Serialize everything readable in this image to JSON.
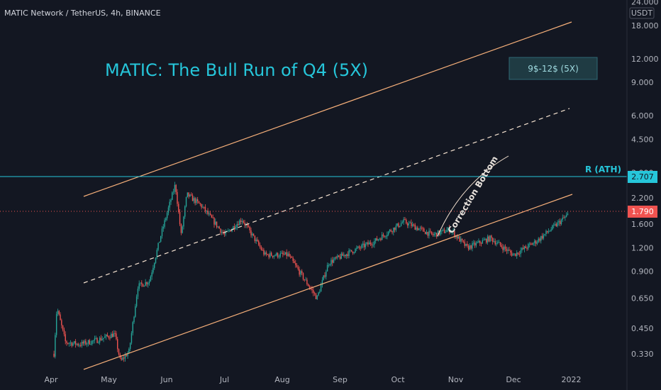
{
  "header": {
    "symbol_line": "MATIC Network / TetherUS, 4h, BINANCE"
  },
  "colors": {
    "background": "#131722",
    "candle_up": "#26a69a",
    "candle_down": "#ef5350",
    "channel": "#f7b07a",
    "resistance": "#26c6da",
    "title": "#26c6da",
    "price_tag": "#ef5350"
  },
  "chart_data": {
    "type": "candlestick",
    "title": "MATIC: The Bull Run of Q4 (5X)",
    "y_scale": "log",
    "y_unit": "USDT",
    "ylim": [
      0.28,
      24
    ],
    "y_ticks": [
      "24.000",
      "18.000",
      "12.000",
      "9.000",
      "6.000",
      "4.500",
      "3.000",
      "2.200",
      "1.600",
      "1.200",
      "0.900",
      "0.650",
      "0.450",
      "0.330"
    ],
    "x_ticks": [
      "Apr",
      "May",
      "Jun",
      "Jul",
      "Aug",
      "Sep",
      "Oct",
      "Nov",
      "Dec",
      "2022"
    ],
    "price_path": [
      {
        "month": 0.05,
        "close": 0.33
      },
      {
        "month": 0.1,
        "close": 0.58
      },
      {
        "month": 0.25,
        "close": 0.38
      },
      {
        "month": 0.5,
        "close": 0.37
      },
      {
        "month": 0.8,
        "close": 0.39
      },
      {
        "month": 1.1,
        "close": 0.42
      },
      {
        "month": 1.2,
        "close": 0.3
      },
      {
        "month": 1.35,
        "close": 0.34
      },
      {
        "month": 1.5,
        "close": 0.75
      },
      {
        "month": 1.7,
        "close": 0.8
      },
      {
        "month": 1.9,
        "close": 1.4
      },
      {
        "month": 2.0,
        "close": 1.8
      },
      {
        "month": 2.15,
        "close": 2.6
      },
      {
        "month": 2.25,
        "close": 1.4
      },
      {
        "month": 2.35,
        "close": 2.3
      },
      {
        "month": 2.6,
        "close": 2.0
      },
      {
        "month": 3.0,
        "close": 1.4
      },
      {
        "month": 3.3,
        "close": 1.7
      },
      {
        "month": 3.7,
        "close": 1.1
      },
      {
        "month": 4.1,
        "close": 1.1
      },
      {
        "month": 4.6,
        "close": 0.65
      },
      {
        "month": 4.8,
        "close": 1.0
      },
      {
        "month": 5.2,
        "close": 1.15
      },
      {
        "month": 5.6,
        "close": 1.3
      },
      {
        "month": 6.1,
        "close": 1.65
      },
      {
        "month": 6.6,
        "close": 1.4
      },
      {
        "month": 6.9,
        "close": 1.5
      },
      {
        "month": 7.2,
        "close": 1.2
      },
      {
        "month": 7.6,
        "close": 1.35
      },
      {
        "month": 8.0,
        "close": 1.1
      },
      {
        "month": 8.4,
        "close": 1.3
      },
      {
        "month": 8.7,
        "close": 1.55
      },
      {
        "month": 8.95,
        "close": 1.8
      }
    ],
    "lines": {
      "resistance_label": "R (ATH)",
      "resistance_value": "2.707",
      "last_price": "1.790"
    },
    "annotations": {
      "target_box": "9$-12$ (5X)",
      "curve_label": "Correction Bottom"
    }
  }
}
